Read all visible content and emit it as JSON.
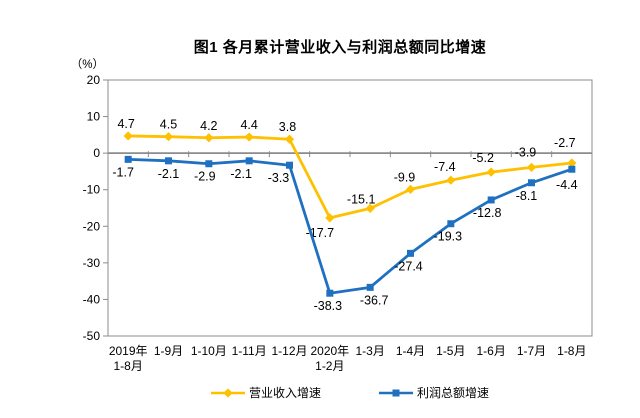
{
  "chart_data": {
    "type": "line",
    "title": "图1  各月累计营业收入与利润总额同比增速",
    "unit_label": "（%）",
    "categories": [
      "2019年\n1-8月",
      "1-9月",
      "1-10月",
      "1-11月",
      "1-12月",
      "2020年\n1-2月",
      "1-3月",
      "1-4月",
      "1-5月",
      "1-6月",
      "1-7月",
      "1-8月"
    ],
    "series": [
      {
        "name": "营业收入增速",
        "color": "#FFC000",
        "marker": "diamond",
        "values": [
          4.7,
          4.5,
          4.2,
          4.4,
          3.8,
          -17.7,
          -15.1,
          -9.9,
          -7.4,
          -5.2,
          -3.9,
          -2.7
        ],
        "label_side": [
          "above",
          "above",
          "above",
          "above",
          "above",
          "below",
          "above",
          "above",
          "above",
          "above",
          "above",
          "above"
        ],
        "label_dx": [
          -2,
          0,
          0,
          0,
          -2,
          -10,
          -9,
          -6,
          -6,
          -8,
          -6,
          -7
        ],
        "label_dy": [
          0,
          0,
          0,
          0,
          0,
          2,
          3,
          0,
          -1,
          -2,
          -3,
          -8
        ]
      },
      {
        "name": "利润总额增速",
        "color": "#1F70C1",
        "marker": "square",
        "values": [
          -1.7,
          -2.1,
          -2.9,
          -2.1,
          -3.3,
          -38.3,
          -36.7,
          -27.4,
          -19.3,
          -12.8,
          -8.1,
          -4.4
        ],
        "label_side": [
          "below",
          "below",
          "below",
          "below",
          "below",
          "below",
          "below",
          "below",
          "below",
          "below",
          "below",
          "below"
        ],
        "label_dx": [
          -5,
          0,
          -4,
          -8,
          -11,
          -2,
          4,
          -2,
          -3,
          -4,
          -5,
          -5
        ],
        "label_dy": [
          0,
          0,
          0,
          0,
          0,
          0,
          0,
          0,
          0,
          0,
          0,
          3
        ]
      }
    ],
    "y_axis": {
      "min": -50,
      "max": 20,
      "ticks": [
        20,
        10,
        0,
        -10,
        -20,
        -30,
        -40,
        -50
      ]
    },
    "x_axis_at": 0,
    "grid": false,
    "legend_position": "bottom",
    "axis_color": "#8C8C8C",
    "text_color": "#000000"
  }
}
